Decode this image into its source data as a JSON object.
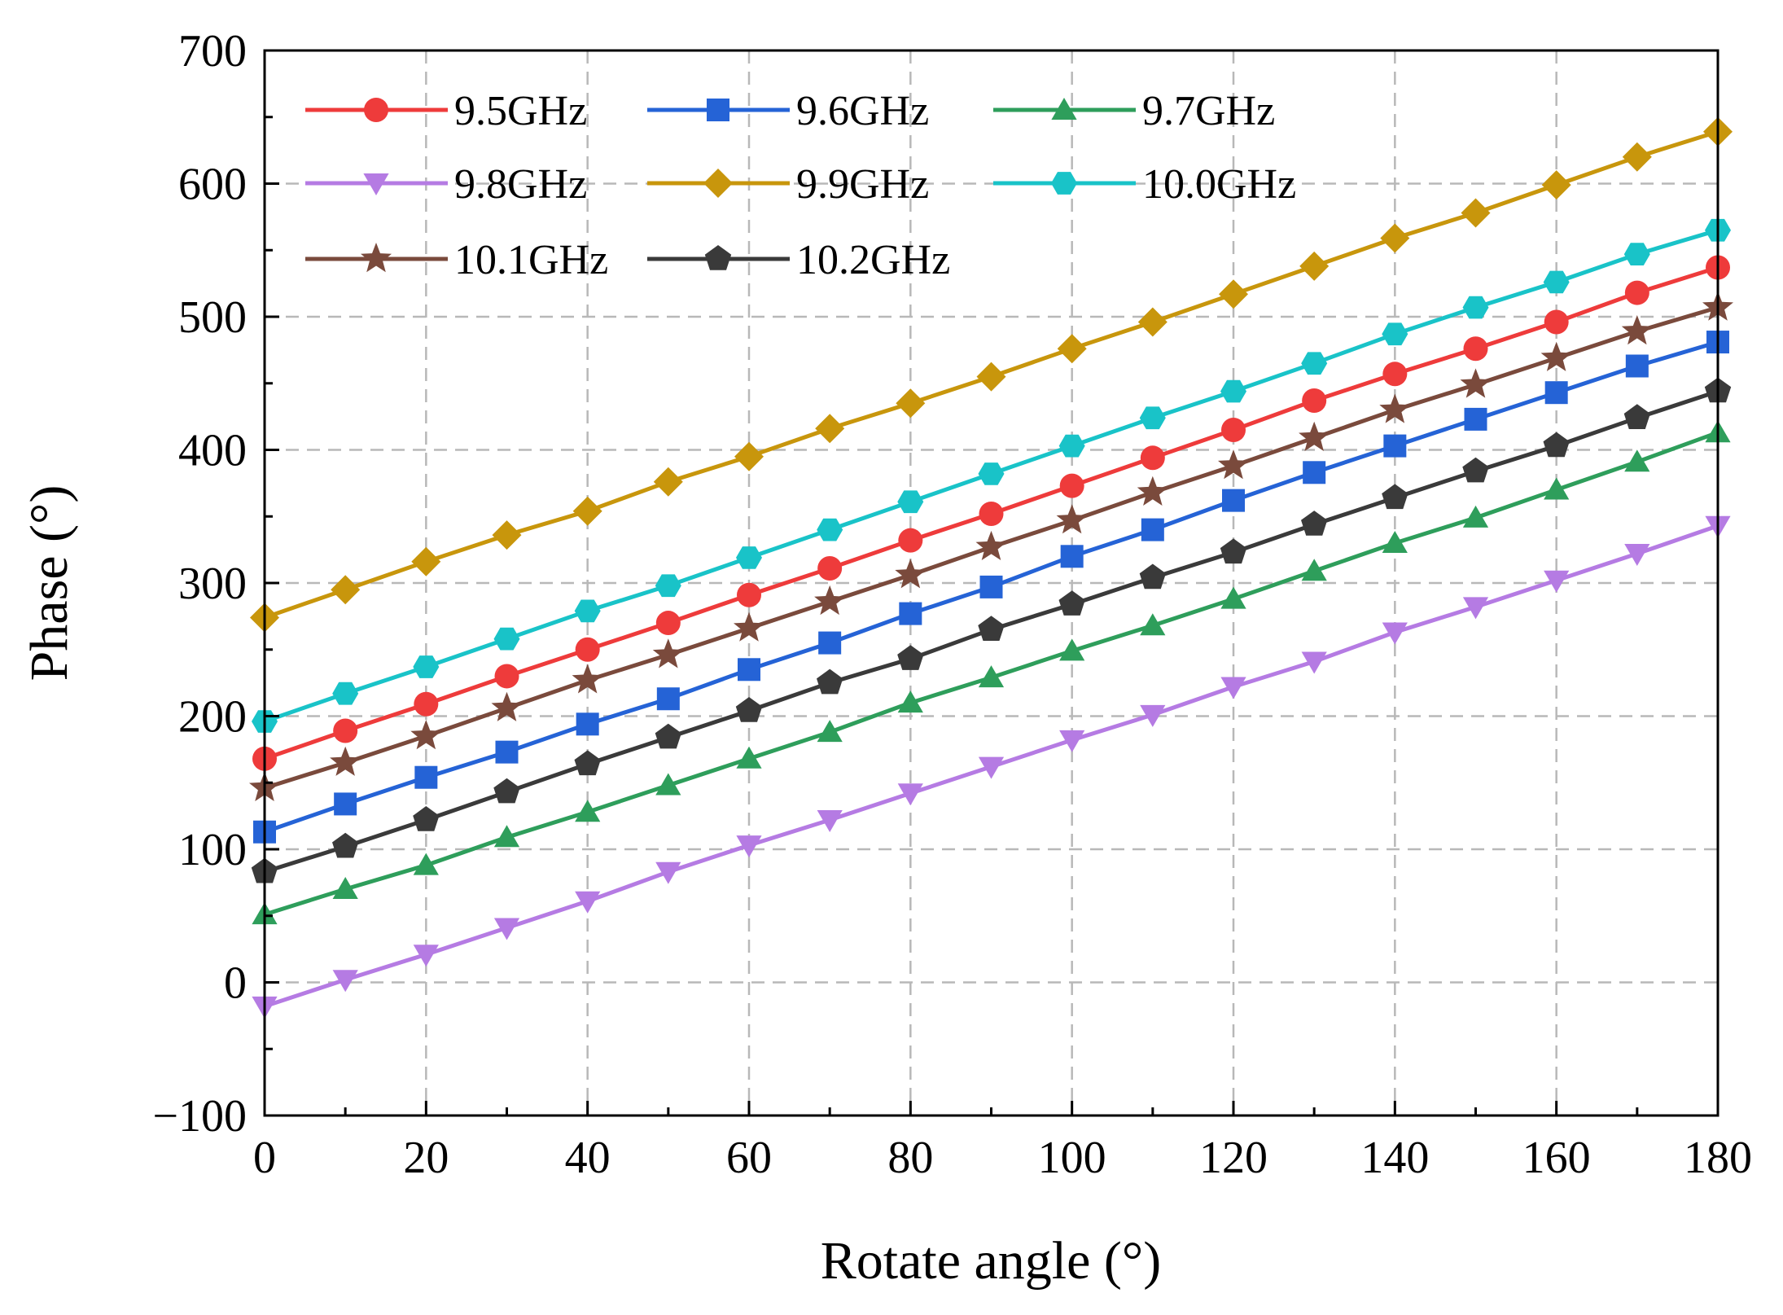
{
  "chart_data": {
    "type": "line",
    "title": "",
    "xlabel": "Rotate angle (°)",
    "ylabel": "Phase (°)",
    "xlim": [
      0,
      180
    ],
    "ylim": [
      -100,
      700
    ],
    "xticks": [
      "0",
      "20",
      "40",
      "60",
      "80",
      "100",
      "120",
      "140",
      "160",
      "180"
    ],
    "yticks": [
      "700",
      "600",
      "500",
      "400",
      "300",
      "200",
      "100",
      "0",
      "−100"
    ],
    "grid": true,
    "legend_position": "top-left",
    "x": [
      0,
      10,
      20,
      30,
      40,
      50,
      60,
      70,
      80,
      90,
      100,
      110,
      120,
      130,
      140,
      150,
      160,
      170,
      180
    ],
    "series": [
      {
        "name": "9.5GHz",
        "color": "#ee3b3b",
        "marker": "circle",
        "values": [
          168,
          189,
          209,
          230,
          250,
          270,
          291,
          311,
          332,
          352,
          373,
          394,
          415,
          437,
          457,
          476,
          496,
          518,
          537
        ]
      },
      {
        "name": "9.6GHz",
        "color": "#2563d6",
        "marker": "square",
        "values": [
          113,
          134,
          154,
          173,
          194,
          213,
          235,
          255,
          277,
          297,
          320,
          340,
          362,
          383,
          403,
          423,
          443,
          463,
          481
        ]
      },
      {
        "name": "9.7GHz",
        "color": "#2e9e5b",
        "marker": "triangle-up",
        "values": [
          51,
          70,
          88,
          109,
          128,
          148,
          168,
          188,
          210,
          229,
          249,
          268,
          288,
          309,
          330,
          349,
          370,
          391,
          413
        ]
      },
      {
        "name": "9.8GHz",
        "color": "#b57be3",
        "marker": "triangle-down",
        "values": [
          -18,
          2,
          21,
          41,
          61,
          83,
          103,
          122,
          142,
          162,
          182,
          201,
          222,
          241,
          263,
          282,
          302,
          322,
          343
        ]
      },
      {
        "name": "9.9GHz",
        "color": "#c8960c",
        "marker": "diamond",
        "values": [
          274,
          295,
          316,
          336,
          354,
          376,
          395,
          416,
          435,
          455,
          476,
          496,
          517,
          538,
          559,
          578,
          599,
          620,
          639
        ]
      },
      {
        "name": "10.0GHz",
        "color": "#19c3c8",
        "marker": "hexagon",
        "values": [
          196,
          217,
          237,
          258,
          279,
          298,
          319,
          340,
          361,
          382,
          403,
          424,
          444,
          465,
          487,
          507,
          526,
          547,
          565
        ]
      },
      {
        "name": "10.1GHz",
        "color": "#7a4a3c",
        "marker": "star",
        "values": [
          146,
          165,
          185,
          206,
          227,
          246,
          266,
          286,
          306,
          327,
          347,
          368,
          388,
          409,
          430,
          449,
          469,
          489,
          507
        ]
      },
      {
        "name": "10.2GHz",
        "color": "#3a3a3a",
        "marker": "pentagon",
        "values": [
          83,
          102,
          122,
          143,
          164,
          184,
          204,
          225,
          243,
          265,
          284,
          304,
          323,
          344,
          364,
          384,
          403,
          424,
          444
        ]
      }
    ]
  }
}
